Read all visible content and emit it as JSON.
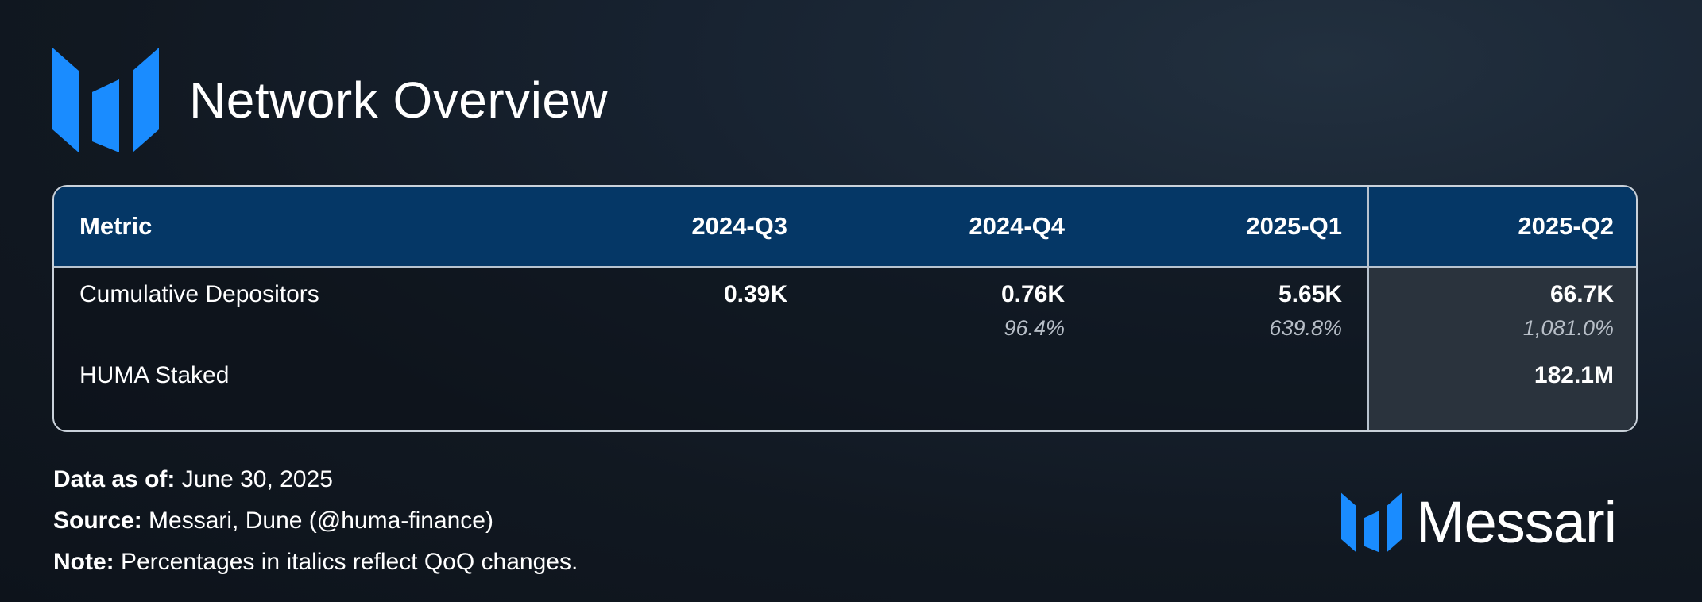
{
  "header": {
    "logo_icon": "messari-logo-icon",
    "title": "Network Overview"
  },
  "colors": {
    "accent": "#1a8cff",
    "header_row": "#053766",
    "highlight_column": "#2a333d"
  },
  "table": {
    "columns": [
      "Metric",
      "2024-Q3",
      "2024-Q4",
      "2025-Q1",
      "2025-Q2"
    ],
    "rows": [
      {
        "metric": "Cumulative Depositors",
        "values": [
          "0.39K",
          "0.76K",
          "5.65K",
          "66.7K"
        ],
        "changes": [
          "",
          "96.4%",
          "639.8%",
          "1,081.0%"
        ]
      },
      {
        "metric": "HUMA Staked",
        "values": [
          "",
          "",
          "",
          "182.1M"
        ],
        "changes": [
          "",
          "",
          "",
          ""
        ]
      }
    ]
  },
  "footer": {
    "data_as_of_label": "Data as of:",
    "data_as_of_value": " June 30, 2025",
    "source_label": "Source:",
    "source_value": " Messari, Dune (@huma-finance)",
    "note_label": "Note:",
    "note_value": " Percentages in italics reflect QoQ changes."
  },
  "brand": {
    "logo_icon": "messari-logo-icon",
    "name": "Messari"
  }
}
